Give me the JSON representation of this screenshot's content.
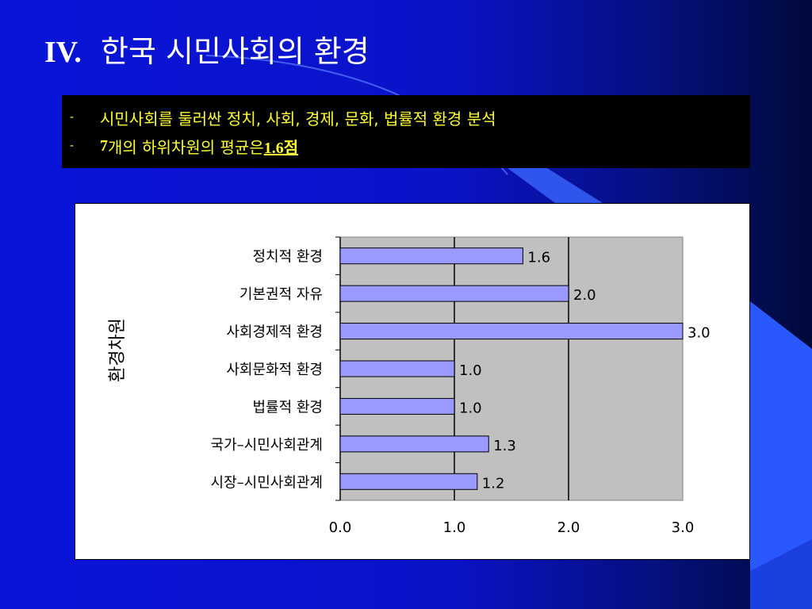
{
  "slide": {
    "title_roman": "IV.",
    "title_text": "한국 시민사회의 환경"
  },
  "bullets": [
    {
      "dash": "-",
      "text": "시민사회를 둘러싼 정치, 사회, 경제, 문화, 법률적 환경 분석"
    },
    {
      "dash": "-",
      "prefix": "7",
      "middle": "개의 하위차원의 평균은 ",
      "highlight": "1.6점"
    }
  ],
  "colors": {
    "bar_fill": "#9999ff",
    "plot_bg": "#c0c0c0",
    "text_yellow": "#ffff33"
  },
  "chart_data": {
    "type": "bar",
    "orientation": "horizontal",
    "ylabel": "환경차원",
    "xlabel": "",
    "categories": [
      "정치적 환경",
      "기본권적 자유",
      "사회경제적 환경",
      "사회문화적 환경",
      "법률적 환경",
      "국가–시민사회관계",
      "시장–시민사회관계"
    ],
    "values": [
      1.6,
      2.0,
      3.0,
      1.0,
      1.0,
      1.3,
      1.2
    ],
    "value_labels": [
      "1.6",
      "2.0",
      "3.0",
      "1.0",
      "1.0",
      "1.3",
      "1.2"
    ],
    "xlim": [
      0,
      3
    ],
    "xticks": [
      "0.0",
      "1.0",
      "2.0",
      "3.0"
    ],
    "grid": "vertical"
  }
}
